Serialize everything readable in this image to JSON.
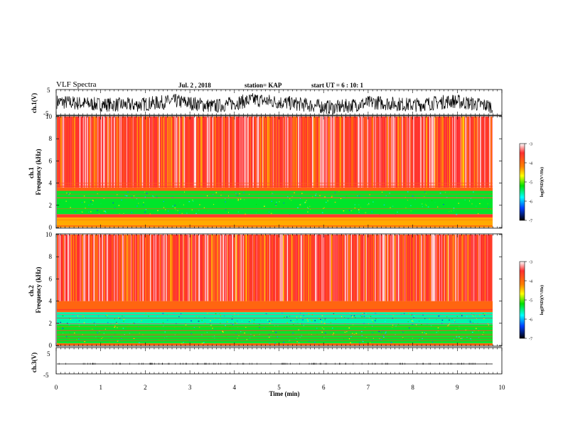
{
  "header": {
    "title": "VLF Spectra",
    "date": "Jul. 2 , 2018",
    "station": "station= KAP",
    "start": "start UT = 6 : 10: 1"
  },
  "chart_data": [
    {
      "type": "line",
      "ylabel": "ch.1(V)",
      "yticklabels": [
        "5",
        "-5"
      ],
      "ylim": [
        -5,
        5
      ],
      "xlim": [
        0,
        10
      ],
      "description_series": "ch.1 waveform, fluctuating between about -5 and 5 V",
      "series": [
        {
          "values": [
            0.5,
            -1.5,
            -2,
            1,
            -3,
            2,
            -1,
            -4,
            0,
            -2,
            1,
            -3
          ]
        }
      ]
    },
    {
      "type": "heatmap",
      "ylabel": "ch.1\nFrequency (kHz)",
      "yticks": [
        0,
        2,
        4,
        6,
        8,
        10
      ],
      "ylim": [
        0,
        10
      ],
      "xlim": [
        0,
        10
      ],
      "colorbar": {
        "label": "log(PSD)(V²/Hz)",
        "ticks": [
          "-3",
          "-4",
          "-5",
          "-6",
          "-7"
        ],
        "range": [
          -7,
          -3
        ]
      },
      "bands_khz": [
        {
          "from": 0,
          "to": 0.9,
          "level": -4.2
        },
        {
          "from": 0.9,
          "to": 1.2,
          "level": -3.5
        },
        {
          "from": 1.2,
          "to": 3.3,
          "level": -5.3
        },
        {
          "from": 3.3,
          "to": 3.6,
          "level": -3.8
        },
        {
          "from": 3.6,
          "to": 10,
          "level": -3.4
        }
      ]
    },
    {
      "type": "heatmap",
      "ylabel": "ch.2\nFrequency (kHz)",
      "yticks": [
        0,
        2,
        4,
        6,
        8,
        10
      ],
      "ylim": [
        0,
        10
      ],
      "xlim": [
        0,
        10
      ],
      "colorbar": {
        "label": "log(PSD)(V²/Hz)",
        "ticks": [
          "-3",
          "-4",
          "-5",
          "-6",
          "-7"
        ],
        "range": [
          -7,
          -3
        ]
      },
      "bands_khz": [
        {
          "from": 0,
          "to": 0.2,
          "level": -3.8
        },
        {
          "from": 0.2,
          "to": 1.9,
          "level": -5.3
        },
        {
          "from": 1.9,
          "to": 3.0,
          "level": -5.6
        },
        {
          "from": 3.0,
          "to": 4.0,
          "level": -3.8
        },
        {
          "from": 4.0,
          "to": 10,
          "level": -3.4
        }
      ]
    },
    {
      "type": "line",
      "ylabel": "ch.3(V)",
      "yticklabels": [
        "5",
        "-5"
      ],
      "ylim": [
        -5,
        5
      ],
      "xlim": [
        0,
        10
      ],
      "xlabel": "Time (min)",
      "xticks": [
        0,
        1,
        2,
        3,
        4,
        5,
        6,
        7,
        8,
        9,
        10
      ],
      "series": [
        {
          "values": [
            0,
            0
          ]
        }
      ]
    }
  ]
}
